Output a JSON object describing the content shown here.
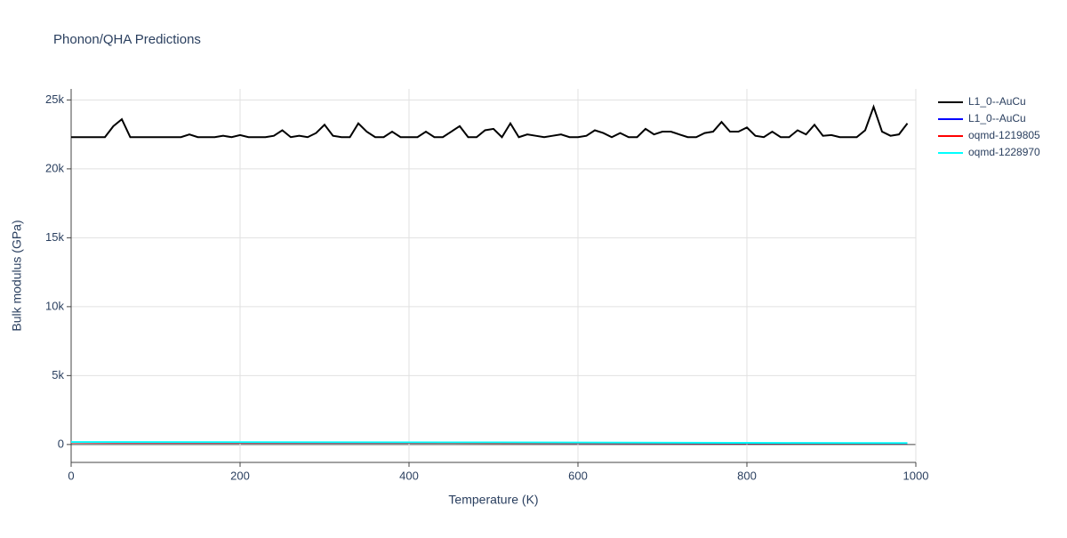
{
  "chart_data": {
    "type": "line",
    "title": "Phonon/QHA Predictions",
    "x_label": "Temperature (K)",
    "y_label": "Bulk modulus (GPa)",
    "xlim": [
      0,
      1000
    ],
    "ylim": [
      -1300,
      25800
    ],
    "xticks": [
      0,
      200,
      400,
      600,
      800,
      1000
    ],
    "yticks": [
      0,
      {
        "value": 5000,
        "label": "5k"
      },
      {
        "value": 10000,
        "label": "10k"
      },
      {
        "value": 15000,
        "label": "15k"
      },
      {
        "value": 20000,
        "label": "20k"
      },
      {
        "value": 25000,
        "label": "25k"
      }
    ],
    "grid": true,
    "legend": "outside-right",
    "series": [
      {
        "name": "L1_0--AuCu",
        "color": "#000000",
        "x": [
          0,
          10,
          20,
          30,
          40,
          50,
          60,
          70,
          80,
          90,
          100,
          110,
          120,
          130,
          140,
          150,
          160,
          170,
          180,
          190,
          200,
          210,
          220,
          230,
          240,
          250,
          260,
          270,
          280,
          290,
          300,
          310,
          320,
          330,
          340,
          350,
          360,
          370,
          380,
          390,
          400,
          410,
          420,
          430,
          440,
          450,
          460,
          470,
          480,
          490,
          500,
          510,
          520,
          530,
          540,
          550,
          560,
          570,
          580,
          590,
          600,
          610,
          620,
          630,
          640,
          650,
          660,
          670,
          680,
          690,
          700,
          710,
          720,
          730,
          740,
          750,
          760,
          770,
          780,
          790,
          800,
          810,
          820,
          830,
          840,
          850,
          860,
          870,
          880,
          890,
          900,
          910,
          920,
          930,
          940,
          950,
          960,
          970,
          980,
          990
        ],
        "values": [
          22300,
          22300,
          22300,
          22300,
          22300,
          23100,
          23600,
          22300,
          22300,
          22300,
          22300,
          22300,
          22300,
          22300,
          22500,
          22300,
          22300,
          22300,
          22400,
          22300,
          22450,
          22300,
          22300,
          22300,
          22400,
          22800,
          22300,
          22400,
          22300,
          22600,
          23200,
          22400,
          22300,
          22300,
          23300,
          22700,
          22300,
          22300,
          22700,
          22300,
          22300,
          22300,
          22700,
          22300,
          22300,
          22700,
          23100,
          22300,
          22300,
          22800,
          22900,
          22300,
          23300,
          22300,
          22500,
          22400,
          22300,
          22400,
          22500,
          22300,
          22300,
          22400,
          22800,
          22600,
          22300,
          22600,
          22300,
          22300,
          22900,
          22500,
          22700,
          22700,
          22500,
          22300,
          22300,
          22600,
          22700,
          23400,
          22700,
          22700,
          23000,
          22400,
          22300,
          22700,
          22300,
          22300,
          22800,
          22500,
          23200,
          22400,
          22450,
          22300,
          22300,
          22300,
          22800,
          24500,
          22700,
          22400,
          22500,
          23300
        ]
      },
      {
        "name": "L1_0--AuCu",
        "color": "#0000ff",
        "x": [
          0,
          500,
          990
        ],
        "values": [
          150,
          120,
          80
        ]
      },
      {
        "name": "oqmd-1219805",
        "color": "#ff0000",
        "x": [
          0,
          500,
          990
        ],
        "values": [
          140,
          115,
          90
        ]
      },
      {
        "name": "oqmd-1228970",
        "color": "#00ffff",
        "x": [
          0,
          500,
          990
        ],
        "values": [
          180,
          150,
          100
        ]
      }
    ]
  }
}
